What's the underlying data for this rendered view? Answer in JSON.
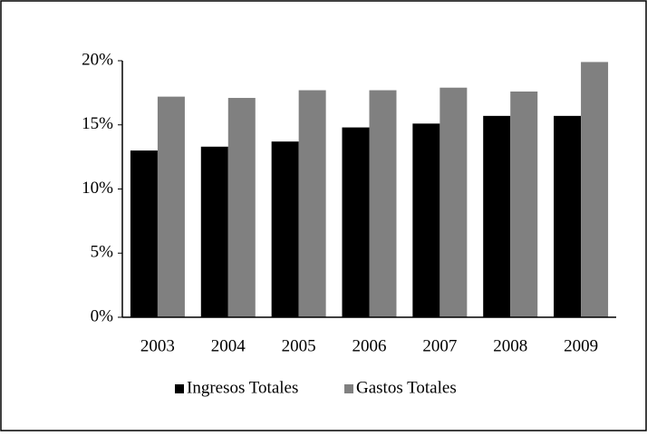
{
  "chart_data": {
    "type": "bar",
    "categories": [
      "2003",
      "2004",
      "2005",
      "2006",
      "2007",
      "2008",
      "2009"
    ],
    "series": [
      {
        "name": "Ingresos Totales",
        "color": "#000000",
        "values": [
          13.0,
          13.3,
          13.7,
          14.8,
          15.1,
          15.7,
          15.7
        ]
      },
      {
        "name": "Gastos Totales",
        "color": "#808080",
        "values": [
          17.2,
          17.1,
          17.7,
          17.7,
          17.9,
          17.6,
          19.9
        ]
      }
    ],
    "ylim": [
      0,
      20
    ],
    "yticks": [
      {
        "value": 0,
        "label": "0%"
      },
      {
        "value": 5,
        "label": "5%"
      },
      {
        "value": 10,
        "label": "10%"
      },
      {
        "value": 15,
        "label": "15%"
      },
      {
        "value": 20,
        "label": "20%"
      }
    ],
    "grid": false,
    "legend": "bottom"
  }
}
